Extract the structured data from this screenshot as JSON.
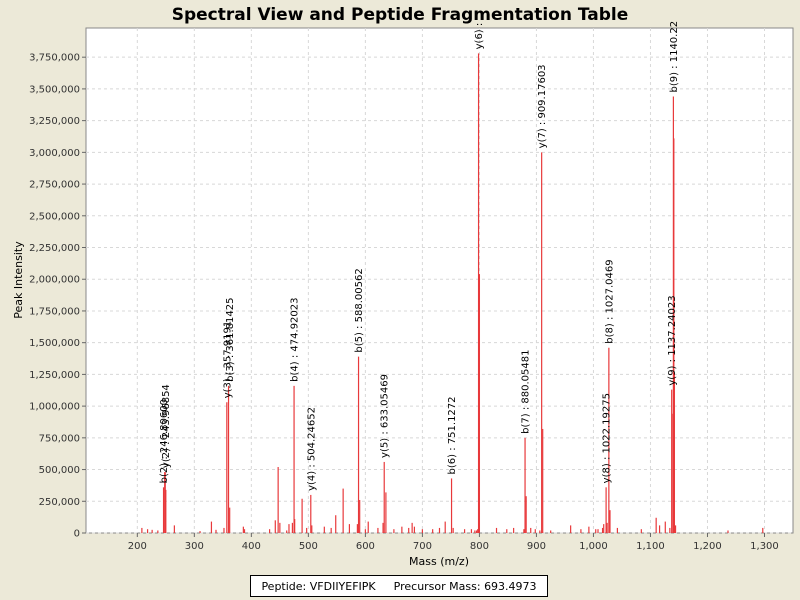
{
  "chart_data": {
    "type": "bar",
    "title": "Spectral View and Peptide Fragmentation Table",
    "xlabel": "Mass (m/z)",
    "ylabel": "Peak Intensity",
    "xlim": [
      110,
      1350
    ],
    "ylim": [
      0,
      3980000
    ],
    "x_ticks": [
      200,
      300,
      400,
      500,
      600,
      700,
      800,
      900,
      1000,
      1100,
      1200,
      1300
    ],
    "y_ticks": [
      0,
      250000,
      500000,
      750000,
      1000000,
      1250000,
      1500000,
      1750000,
      2000000,
      2250000,
      2500000,
      2750000,
      3000000,
      3250000,
      3500000,
      3750000
    ],
    "grid": true,
    "series": [
      {
        "color": "#e8393b",
        "x": [
          208,
          218,
          226,
          236,
          246,
          248,
          249,
          250,
          265,
          310,
          330,
          338,
          352,
          357,
          360,
          362,
          386,
          388,
          432,
          442,
          447,
          450,
          462,
          466,
          472,
          474.92,
          476,
          489,
          497,
          504.25,
          506,
          528,
          540,
          548,
          561,
          572,
          586,
          588.01,
          590,
          600,
          605,
          622,
          631,
          633.05,
          636,
          650,
          664,
          676,
          682,
          686,
          700,
          718,
          730,
          740,
          751.13,
          754,
          774,
          786,
          792,
          795,
          797,
          798.5,
          800,
          830,
          848,
          860,
          878,
          880.05,
          882,
          890,
          898,
          906,
          909.18,
          911,
          925,
          960,
          978,
          992,
          1004,
          1008,
          1016,
          1018,
          1022.19,
          1024,
          1027.05,
          1029,
          1042,
          1084,
          1110,
          1116,
          1126,
          1134,
          1137.24,
          1138,
          1140.22,
          1141,
          1142,
          1144,
          1236,
          1297
        ],
        "y": [
          40000,
          30000,
          25000,
          20000,
          360000,
          480000,
          480000,
          340000,
          60000,
          15000,
          90000,
          25000,
          40000,
          1030000,
          1160000,
          200000,
          50000,
          30000,
          30000,
          100000,
          520000,
          80000,
          20000,
          70000,
          80000,
          1160000,
          110000,
          270000,
          40000,
          300000,
          60000,
          50000,
          40000,
          140000,
          350000,
          70000,
          70000,
          1390000,
          260000,
          30000,
          90000,
          40000,
          80000,
          560000,
          320000,
          30000,
          50000,
          40000,
          80000,
          50000,
          30000,
          30000,
          40000,
          90000,
          430000,
          40000,
          30000,
          30000,
          20000,
          20000,
          30000,
          3780000,
          2040000,
          40000,
          30000,
          40000,
          30000,
          750000,
          290000,
          40000,
          30000,
          20000,
          3000000,
          820000,
          20000,
          60000,
          30000,
          50000,
          30000,
          30000,
          40000,
          70000,
          360000,
          80000,
          1460000,
          180000,
          40000,
          30000,
          120000,
          60000,
          90000,
          40000,
          1130000,
          940000,
          3440000,
          3110000,
          1260000,
          60000,
          20000,
          40000
        ]
      }
    ],
    "annotations": [
      {
        "text": "b(2) : 246.80600",
        "x": 246,
        "y": 360000
      },
      {
        "text": "y(2) : 243.96854",
        "x": 249,
        "y": 480000
      },
      {
        "text": "y(3) : 357.9191",
        "x": 357,
        "y": 1030000
      },
      {
        "text": "b(3) : 361.81425",
        "x": 362,
        "y": 1160000
      },
      {
        "text": "b(4) : 474.92023",
        "x": 474.92,
        "y": 1160000
      },
      {
        "text": "y(4) : 504.24652",
        "x": 504.25,
        "y": 300000
      },
      {
        "text": "b(5) : 588.00562",
        "x": 588.01,
        "y": 1390000
      },
      {
        "text": "y(5) : 633.05469",
        "x": 633.05,
        "y": 560000
      },
      {
        "text": "b(6) : 751.1272",
        "x": 751.13,
        "y": 430000
      },
      {
        "text": "y(6) :",
        "x": 798.5,
        "y": 3780000
      },
      {
        "text": "b(7) : 880.05481",
        "x": 880.05,
        "y": 750000
      },
      {
        "text": "y(7) : 909.17603",
        "x": 909.18,
        "y": 3000000
      },
      {
        "text": "y(8) : 1022.19275",
        "x": 1022.19,
        "y": 360000
      },
      {
        "text": "b(8) : 1027.0469",
        "x": 1027.05,
        "y": 1460000
      },
      {
        "text": "y(9) : 1137.24023",
        "x": 1137.24,
        "y": 1130000
      },
      {
        "text": "b(9) : 1140.22",
        "x": 1140.22,
        "y": 3440000
      }
    ]
  },
  "legend": {
    "peptide": "Peptide: VFDIIYEFIPK",
    "precursor": "Precursor Mass: 693.4973"
  }
}
